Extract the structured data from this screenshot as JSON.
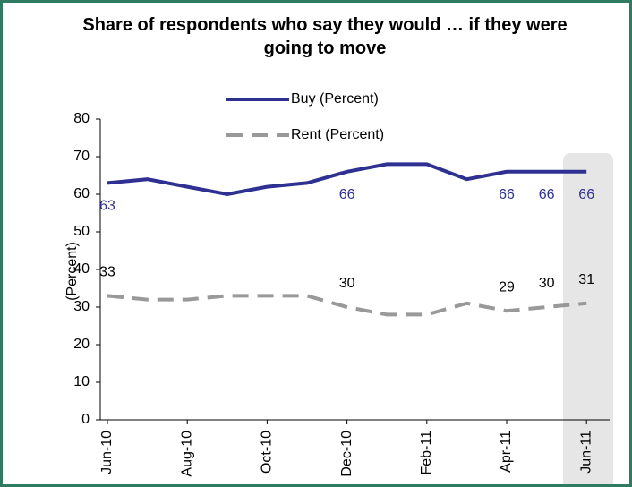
{
  "chart_data": {
    "type": "line",
    "title": "Share of respondents who say they would … if they were going to move",
    "y_label": "(Percent)",
    "categories": [
      "Jun-10",
      null,
      "Aug-10",
      null,
      "Oct-10",
      null,
      "Dec-10",
      null,
      "Feb-11",
      null,
      "Apr-11",
      null,
      "Jun-11"
    ],
    "series": [
      {
        "name": "Buy (Percent)",
        "color": "#2e3192",
        "dash": false,
        "values": [
          63,
          64,
          62,
          60,
          62,
          63,
          66,
          68,
          68,
          64,
          66,
          66,
          66
        ],
        "value_labels": [
          "63",
          null,
          null,
          null,
          null,
          null,
          "66",
          null,
          null,
          null,
          "66",
          "66",
          "66"
        ]
      },
      {
        "name": "Rent (Percent)",
        "color": "#999999",
        "dash": true,
        "values": [
          33,
          32,
          32,
          33,
          33,
          33,
          30,
          28,
          28,
          31,
          29,
          30,
          31
        ],
        "value_labels": [
          "33",
          null,
          null,
          null,
          null,
          null,
          "30",
          null,
          null,
          null,
          "29",
          "30",
          "31"
        ]
      }
    ],
    "ylim": [
      0,
      80
    ],
    "yticks": [
      0,
      10,
      20,
      30,
      40,
      50,
      60,
      70,
      80
    ],
    "grid": false
  }
}
